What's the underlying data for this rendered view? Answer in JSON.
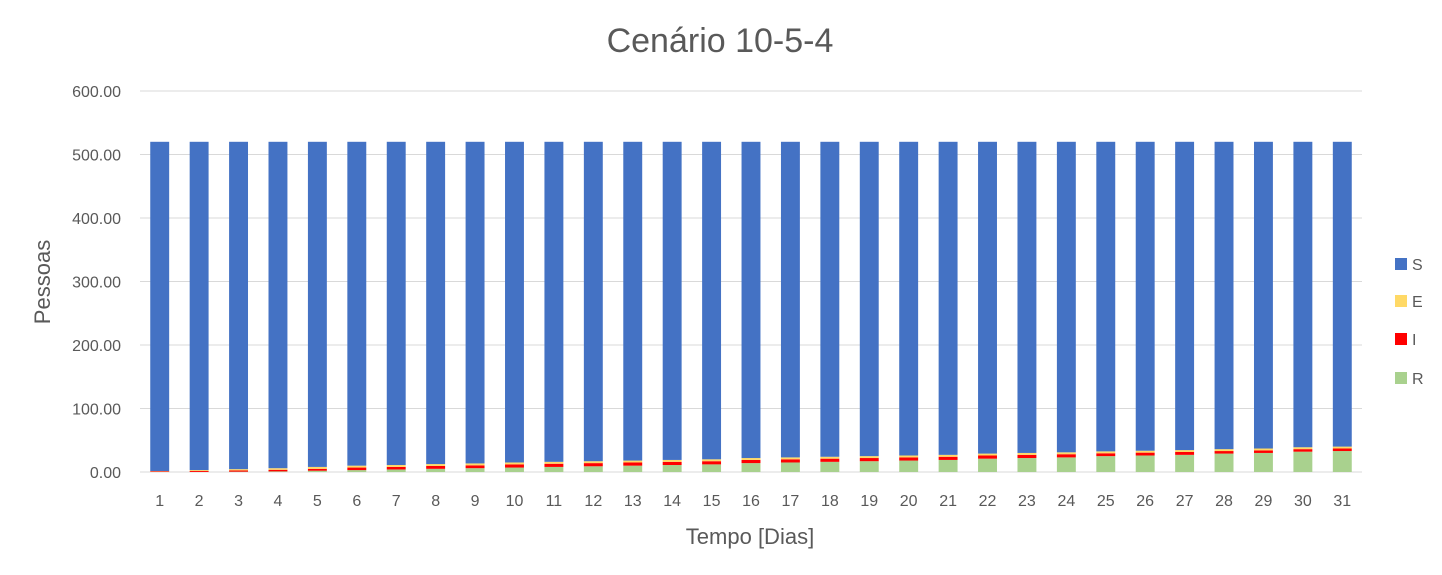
{
  "chart_data": {
    "type": "bar",
    "stacked": true,
    "title": "Cenário 10-5-4",
    "xlabel": "Tempo [Dias]",
    "ylabel": "Pessoas",
    "ylim": [
      0,
      600
    ],
    "yticks": [
      "0.00",
      "100.00",
      "200.00",
      "300.00",
      "400.00",
      "500.00",
      "600.00"
    ],
    "grid": true,
    "legend_position": "right",
    "categories": [
      "1",
      "2",
      "3",
      "4",
      "5",
      "6",
      "7",
      "8",
      "9",
      "10",
      "11",
      "12",
      "13",
      "14",
      "15",
      "16",
      "17",
      "18",
      "19",
      "20",
      "21",
      "22",
      "23",
      "24",
      "25",
      "26",
      "27",
      "28",
      "29",
      "30",
      "31"
    ],
    "series": [
      {
        "name": "R",
        "color": "#a9d18e",
        "values": [
          0,
          0,
          0.5,
          1,
          2,
          3,
          4,
          5,
          6,
          7,
          8,
          9,
          10,
          11,
          12,
          14,
          15,
          16,
          17,
          18,
          19,
          21,
          22,
          23,
          25,
          26,
          27,
          29,
          30,
          32,
          33
        ]
      },
      {
        "name": "I",
        "color": "#ff0000",
        "values": [
          1,
          1.5,
          2,
          2.5,
          3,
          4,
          4,
          4.5,
          4.5,
          5,
          5,
          5,
          5,
          5,
          5,
          5,
          5,
          5,
          5,
          5,
          5,
          5,
          5,
          5,
          4.5,
          4.5,
          4.5,
          4,
          4,
          4,
          4
        ]
      },
      {
        "name": "E",
        "color": "#ffd966",
        "values": [
          0.5,
          1.5,
          2,
          2.5,
          3,
          3,
          3,
          3,
          3,
          3,
          3,
          3,
          3,
          3,
          3,
          3,
          3,
          3,
          3,
          3,
          3,
          3,
          3,
          3,
          3,
          3,
          3,
          3,
          3,
          3,
          3
        ]
      },
      {
        "name": "S",
        "color": "#4472c4",
        "values": [
          518.5,
          517,
          515.5,
          514,
          512,
          510,
          509,
          507.5,
          506.5,
          505,
          504,
          503,
          502,
          501,
          500,
          498,
          497,
          496,
          495,
          494,
          493,
          491,
          490,
          489,
          487.5,
          486.5,
          485.5,
          484,
          483,
          481,
          480
        ]
      }
    ],
    "legend_order": [
      "S",
      "E",
      "I",
      "R"
    ]
  }
}
